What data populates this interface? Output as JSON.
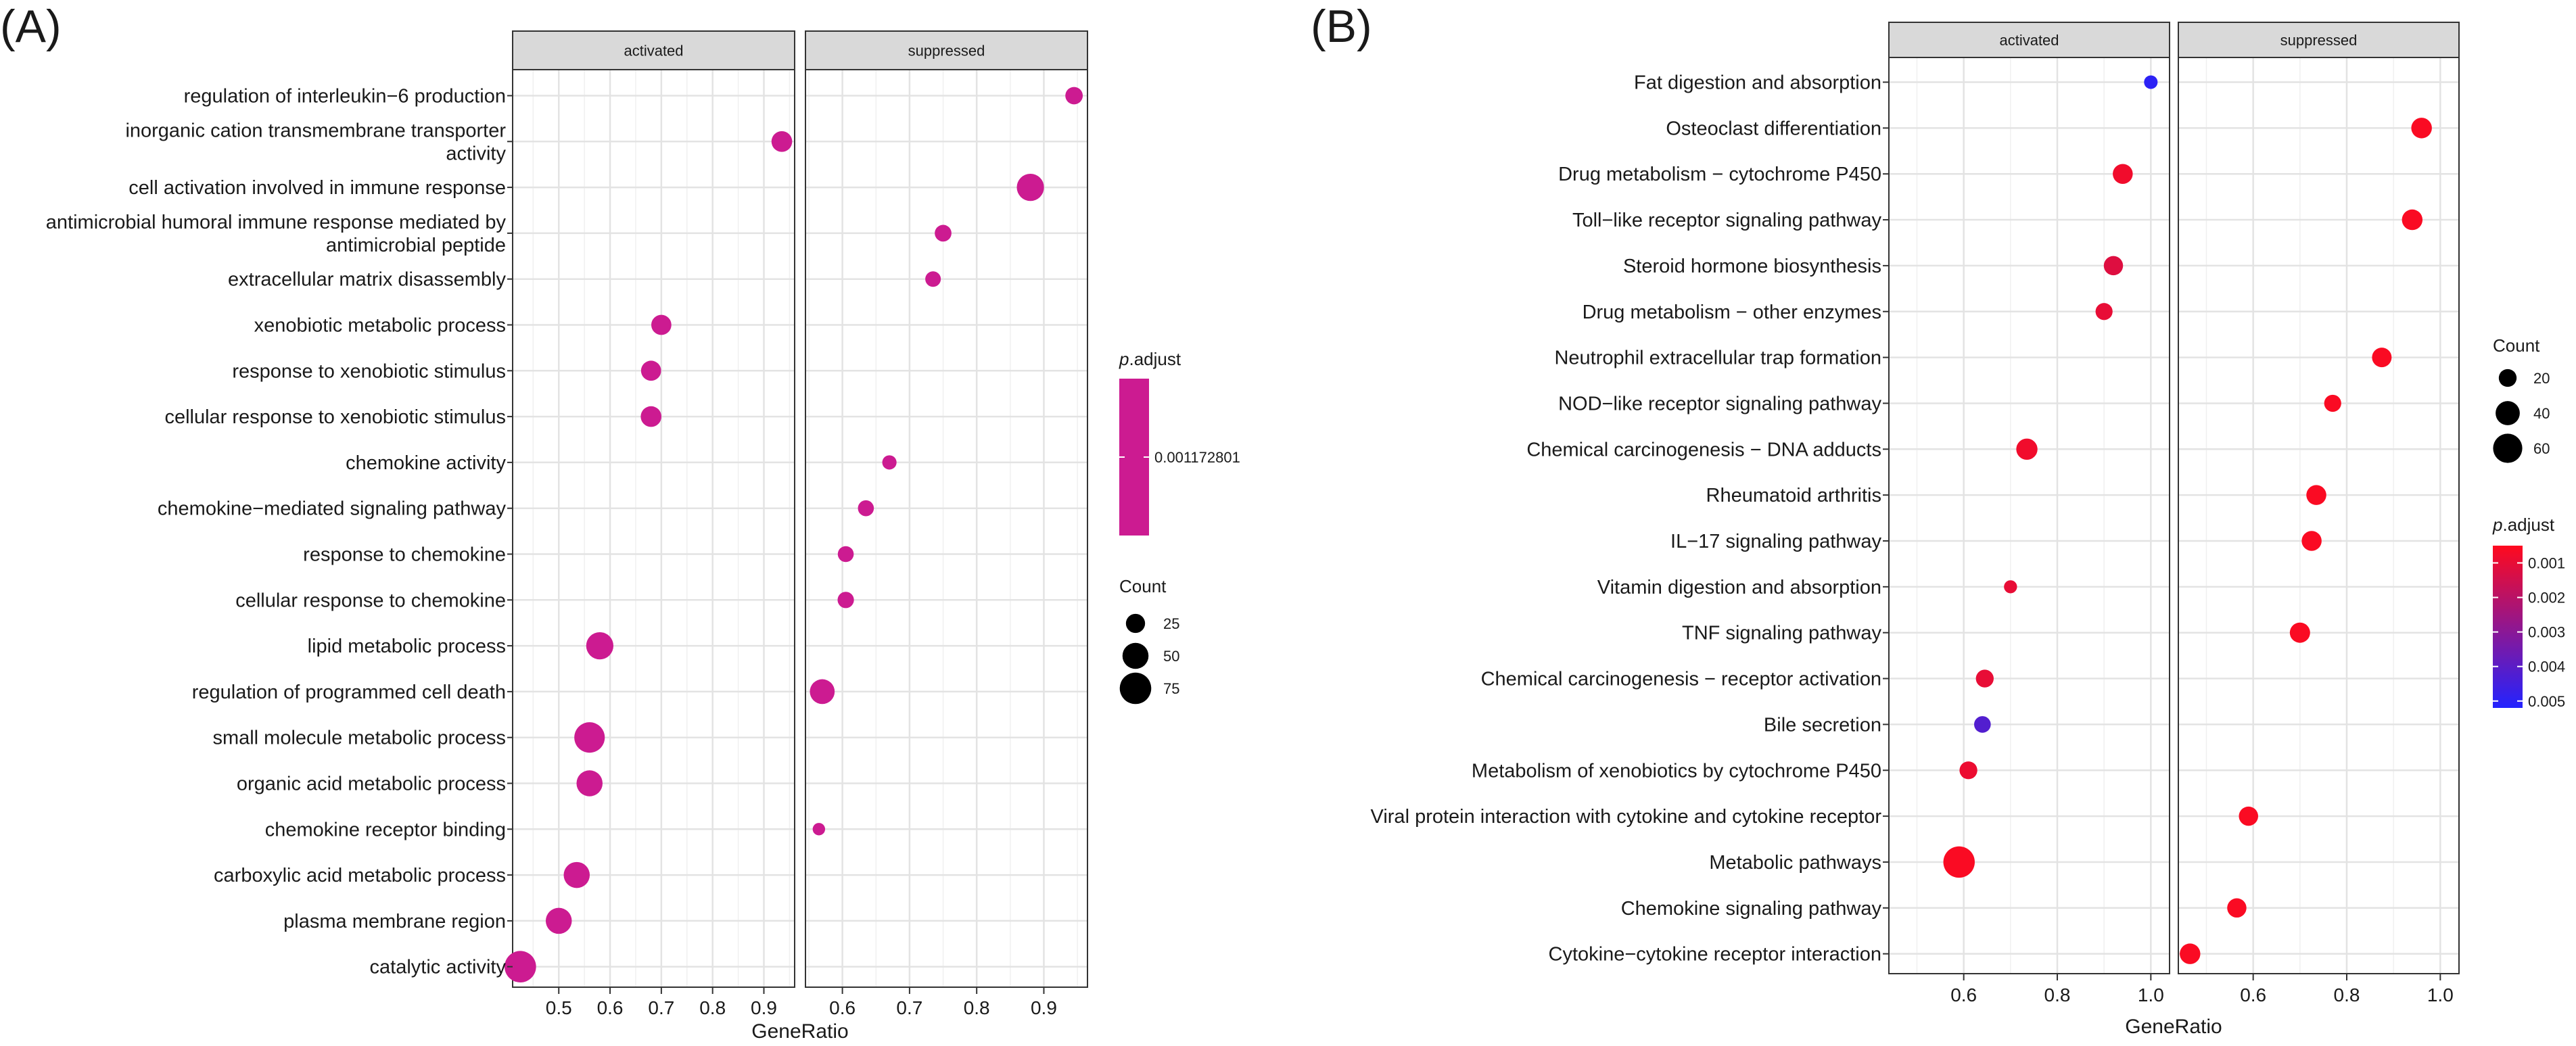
{
  "chart_data": [
    {
      "panel_label": "(A)",
      "type": "scatter",
      "subtype": "dotplot-faceted",
      "xlabel": "GeneRatio",
      "facets": [
        "activated",
        "suppressed"
      ],
      "terms": [
        "regulation of interleukin−6 production",
        "inorganic cation transmembrane transporter\nactivity",
        "cell activation involved in immune response",
        "antimicrobial humoral immune response mediated by\nantimicrobial peptide",
        "extracellular matrix disassembly",
        "xenobiotic metabolic process",
        "response to xenobiotic stimulus",
        "cellular response to xenobiotic stimulus",
        "chemokine activity",
        "chemokine−mediated signaling pathway",
        "response to chemokine",
        "cellular response to chemokine",
        "lipid metabolic process",
        "regulation of programmed cell death",
        "small molecule metabolic process",
        "organic acid metabolic process",
        "chemokine receptor binding",
        "carboxylic acid metabolic process",
        "plasma membrane region",
        "catalytic activity"
      ],
      "facet_axes": [
        {
          "xlim": [
            0.41,
            0.96
          ],
          "ticks": [
            0.5,
            0.6,
            0.7,
            0.8,
            0.9
          ],
          "tick_labels": [
            "0.5",
            "0.6",
            "0.7",
            "0.8",
            "0.9"
          ]
        },
        {
          "xlim": [
            0.545,
            0.965
          ],
          "ticks": [
            0.6,
            0.7,
            0.8,
            0.9
          ],
          "tick_labels": [
            "0.6",
            "0.7",
            "0.8",
            "0.9"
          ]
        }
      ],
      "points": [
        {
          "term": 0,
          "facet": 1,
          "x": 0.945,
          "count": 20,
          "p_adjust": 0.001172801
        },
        {
          "term": 1,
          "facet": 0,
          "x": 0.935,
          "count": 30,
          "p_adjust": 0.001172801
        },
        {
          "term": 2,
          "facet": 1,
          "x": 0.88,
          "count": 55,
          "p_adjust": 0.001172801
        },
        {
          "term": 3,
          "facet": 1,
          "x": 0.75,
          "count": 18,
          "p_adjust": 0.001172801
        },
        {
          "term": 4,
          "facet": 1,
          "x": 0.735,
          "count": 15,
          "p_adjust": 0.001172801
        },
        {
          "term": 5,
          "facet": 0,
          "x": 0.7,
          "count": 28,
          "p_adjust": 0.001172801
        },
        {
          "term": 6,
          "facet": 0,
          "x": 0.68,
          "count": 28,
          "p_adjust": 0.001172801
        },
        {
          "term": 7,
          "facet": 0,
          "x": 0.68,
          "count": 30,
          "p_adjust": 0.001172801
        },
        {
          "term": 8,
          "facet": 1,
          "x": 0.67,
          "count": 12,
          "p_adjust": 0.001172801
        },
        {
          "term": 9,
          "facet": 1,
          "x": 0.635,
          "count": 16,
          "p_adjust": 0.001172801
        },
        {
          "term": 10,
          "facet": 1,
          "x": 0.605,
          "count": 16,
          "p_adjust": 0.001172801
        },
        {
          "term": 11,
          "facet": 1,
          "x": 0.605,
          "count": 17,
          "p_adjust": 0.001172801
        },
        {
          "term": 12,
          "facet": 0,
          "x": 0.58,
          "count": 55,
          "p_adjust": 0.001172801
        },
        {
          "term": 13,
          "facet": 1,
          "x": 0.57,
          "count": 45,
          "p_adjust": 0.001172801
        },
        {
          "term": 14,
          "facet": 0,
          "x": 0.56,
          "count": 70,
          "p_adjust": 0.001172801
        },
        {
          "term": 15,
          "facet": 0,
          "x": 0.56,
          "count": 50,
          "p_adjust": 0.001172801
        },
        {
          "term": 16,
          "facet": 1,
          "x": 0.565,
          "count": 8,
          "p_adjust": 0.001172801
        },
        {
          "term": 17,
          "facet": 0,
          "x": 0.535,
          "count": 50,
          "p_adjust": 0.001172801
        },
        {
          "term": 18,
          "facet": 0,
          "x": 0.5,
          "count": 50,
          "p_adjust": 0.001172801
        },
        {
          "term": 19,
          "facet": 0,
          "x": 0.425,
          "count": 75,
          "p_adjust": 0.001172801
        }
      ],
      "legend_padj": {
        "title_italic": "p",
        "title_rest": ".adjust",
        "label": "0.001172801",
        "color": "#cc1b91"
      },
      "legend_count": {
        "title": "Count",
        "breaks": [
          25,
          50,
          75
        ],
        "labels": [
          "25",
          "50",
          "75"
        ]
      },
      "count_range": [
        5,
        80
      ]
    },
    {
      "panel_label": "(B)",
      "type": "scatter",
      "subtype": "dotplot-faceted",
      "xlabel": "GeneRatio",
      "facets": [
        "activated",
        "suppressed"
      ],
      "terms": [
        "Fat digestion and absorption",
        "Osteoclast differentiation",
        "Drug metabolism − cytochrome P450",
        "Toll−like receptor signaling pathway",
        "Steroid hormone biosynthesis",
        "Drug metabolism − other enzymes",
        "Neutrophil extracellular trap formation",
        "NOD−like receptor signaling pathway",
        "Chemical carcinogenesis − DNA adducts",
        "Rheumatoid arthritis",
        "IL−17 signaling pathway",
        "Vitamin digestion and absorption",
        "TNF signaling pathway",
        "Chemical carcinogenesis − receptor activation",
        "Bile secretion",
        "Metabolism of xenobiotics by cytochrome P450",
        "Viral protein interaction with cytokine and cytokine receptor",
        "Metabolic pathways",
        "Chemokine signaling pathway",
        "Cytokine−cytokine receptor interaction"
      ],
      "facet_axes": [
        {
          "xlim": [
            0.44,
            1.04
          ],
          "ticks": [
            0.6,
            0.8,
            1.0
          ],
          "tick_labels": [
            "0.6",
            "0.8",
            "1.0"
          ]
        },
        {
          "xlim": [
            0.44,
            1.04
          ],
          "ticks": [
            0.6,
            0.8,
            1.0
          ],
          "tick_labels": [
            "0.6",
            "0.8",
            "1.0"
          ]
        }
      ],
      "points": [
        {
          "term": 0,
          "facet": 0,
          "x": 1.0,
          "count": 10,
          "p_adjust": 0.005
        },
        {
          "term": 1,
          "facet": 1,
          "x": 0.96,
          "count": 28,
          "p_adjust": 0.0006
        },
        {
          "term": 2,
          "facet": 0,
          "x": 0.94,
          "count": 26,
          "p_adjust": 0.0008
        },
        {
          "term": 3,
          "facet": 1,
          "x": 0.94,
          "count": 28,
          "p_adjust": 0.0006
        },
        {
          "term": 4,
          "facet": 0,
          "x": 0.92,
          "count": 24,
          "p_adjust": 0.0012
        },
        {
          "term": 5,
          "facet": 0,
          "x": 0.9,
          "count": 18,
          "p_adjust": 0.001
        },
        {
          "term": 6,
          "facet": 1,
          "x": 0.875,
          "count": 25,
          "p_adjust": 0.0006
        },
        {
          "term": 7,
          "facet": 1,
          "x": 0.77,
          "count": 18,
          "p_adjust": 0.0006
        },
        {
          "term": 8,
          "facet": 0,
          "x": 0.735,
          "count": 30,
          "p_adjust": 0.0008
        },
        {
          "term": 9,
          "facet": 1,
          "x": 0.735,
          "count": 26,
          "p_adjust": 0.0006
        },
        {
          "term": 10,
          "facet": 1,
          "x": 0.725,
          "count": 26,
          "p_adjust": 0.0006
        },
        {
          "term": 11,
          "facet": 0,
          "x": 0.7,
          "count": 9,
          "p_adjust": 0.001
        },
        {
          "term": 12,
          "facet": 1,
          "x": 0.7,
          "count": 27,
          "p_adjust": 0.0006
        },
        {
          "term": 13,
          "facet": 0,
          "x": 0.645,
          "count": 20,
          "p_adjust": 0.001
        },
        {
          "term": 14,
          "facet": 0,
          "x": 0.64,
          "count": 17,
          "p_adjust": 0.0042
        },
        {
          "term": 15,
          "facet": 0,
          "x": 0.61,
          "count": 20,
          "p_adjust": 0.0009
        },
        {
          "term": 16,
          "facet": 1,
          "x": 0.59,
          "count": 24,
          "p_adjust": 0.0006
        },
        {
          "term": 17,
          "facet": 0,
          "x": 0.59,
          "count": 70,
          "p_adjust": 0.0006
        },
        {
          "term": 18,
          "facet": 1,
          "x": 0.565,
          "count": 24,
          "p_adjust": 0.0006
        },
        {
          "term": 19,
          "facet": 1,
          "x": 0.465,
          "count": 28,
          "p_adjust": 0.0006
        }
      ],
      "legend_count": {
        "title": "Count",
        "breaks": [
          20,
          40,
          60
        ],
        "labels": [
          "20",
          "40",
          "60"
        ]
      },
      "legend_padj": {
        "title_italic": "p",
        "title_rest": ".adjust",
        "breaks": [
          0.001,
          0.002,
          0.003,
          0.004,
          0.005
        ],
        "labels": [
          "0.001",
          "0.002",
          "0.003",
          "0.004",
          "0.005"
        ],
        "low_color": "#ff0a1e",
        "high_color": "#2323ff"
      },
      "count_range": [
        5,
        75
      ],
      "padj_range": [
        0.0005,
        0.0052
      ]
    }
  ]
}
